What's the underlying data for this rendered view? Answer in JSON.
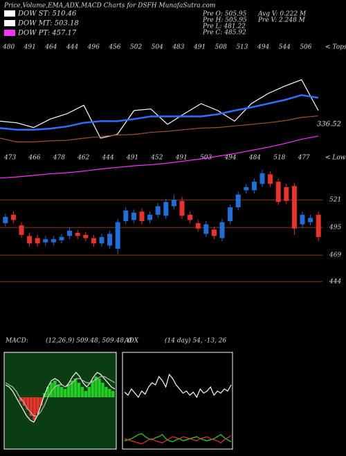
{
  "header": {
    "title": "Price,Volume,EMA,ADX,MACD Charts for DSFH MunafaSutra.com",
    "legend": [
      {
        "label": "DOW ST: 510.46",
        "color": "#ffffff"
      },
      {
        "label": "DOW MT: 503.18",
        "color": "#ffffff"
      },
      {
        "label": "DOW PT: 457.17",
        "color": "#ff33ff"
      }
    ],
    "info": [
      "Pre O: 505.95",
      "Pre H: 505.95",
      "Pre L: 481.22",
      "Pre C: 485.92",
      "Avg V: 0.222 M",
      "Pre V: 2.248 M"
    ]
  },
  "chart_data": [
    {
      "type": "line",
      "ylim": [
        300,
        560
      ],
      "tops": [
        480,
        491,
        464,
        444,
        496,
        456,
        502,
        504,
        483,
        491,
        508,
        513,
        494,
        544,
        506
      ],
      "tops_label": "< Tops",
      "lows": [
        473,
        466,
        478,
        462,
        444,
        491,
        452,
        491,
        503,
        494,
        484,
        518,
        477
      ],
      "lows_label": "< Lows",
      "annotation": "336.52",
      "series": [
        {
          "color": "#ffffff",
          "values": [
            410,
            407,
            398,
            414,
            424,
            440,
            378,
            385,
            430,
            433,
            404,
            424,
            443,
            430,
            410,
            443,
            462,
            476,
            488,
            430
          ]
        },
        {
          "color": "#2f6fff",
          "values": [
            397,
            394,
            394,
            396,
            400,
            407,
            410,
            410,
            414,
            419,
            419,
            419,
            419,
            423,
            430,
            436,
            443,
            450,
            459,
            454
          ]
        },
        {
          "color": "#a0522d",
          "values": [
            378,
            371,
            371,
            373,
            374,
            378,
            381,
            384,
            385,
            389,
            391,
            394,
            397,
            398,
            401,
            404,
            407,
            411,
            417,
            420
          ]
        },
        {
          "color": "#ff33ff",
          "values": [
            303,
            305,
            308,
            311,
            313,
            316,
            320,
            323,
            326,
            328,
            331,
            335,
            339,
            344,
            349,
            355,
            361,
            368,
            376,
            382
          ]
        }
      ]
    },
    {
      "type": "candlestick",
      "ylim": [
        436,
        553
      ],
      "yticks": [
        444,
        469,
        495,
        521
      ],
      "up_color": "#1e6fd9",
      "down_color": "#e8322a",
      "grid_color": "#8b3a1a",
      "open": [
        499,
        507,
        497,
        487,
        485,
        481,
        481,
        483,
        487,
        490,
        488,
        485,
        480,
        478,
        475,
        501,
        502,
        510,
        502,
        507,
        506,
        515,
        520,
        507,
        499,
        489,
        493,
        485,
        501,
        514,
        530,
        530,
        536,
        545,
        538,
        533,
        534,
        498,
        500,
        507
      ],
      "high": [
        508,
        510,
        500,
        490,
        488,
        487,
        487,
        489,
        495,
        493,
        491,
        488,
        489,
        492,
        503,
        514,
        512,
        513,
        510,
        518,
        522,
        526,
        524,
        510,
        502,
        501,
        496,
        503,
        517,
        529,
        536,
        541,
        549,
        548,
        541,
        536,
        537,
        510,
        507,
        510
      ],
      "low": [
        496,
        499,
        485,
        477,
        477,
        478,
        478,
        480,
        484,
        484,
        482,
        477,
        477,
        475,
        470,
        498,
        499,
        498,
        499,
        504,
        503,
        512,
        503,
        499,
        491,
        486,
        484,
        482,
        498,
        511,
        527,
        527,
        533,
        533,
        516,
        517,
        488,
        495,
        497,
        482
      ],
      "close": [
        505,
        502,
        488,
        480,
        480,
        484,
        484,
        486,
        492,
        487,
        485,
        480,
        486,
        489,
        500,
        511,
        509,
        501,
        507,
        515,
        519,
        521,
        506,
        502,
        494,
        498,
        487,
        500,
        514,
        526,
        533,
        538,
        546,
        536,
        519,
        520,
        494,
        507,
        504,
        486
      ]
    },
    {
      "type": "bar",
      "title": "MACD:",
      "subtitle": "(12,26,9) 509.48, 509.48, 0",
      "ylim": [
        -25,
        25
      ],
      "up_color": "#22cc22",
      "down_color": "#e8322a",
      "values": [
        0,
        0,
        0,
        0,
        -2,
        -4,
        -6,
        -9,
        -11,
        -8,
        -4,
        2,
        5,
        7,
        8,
        6,
        5,
        4,
        6,
        8,
        9,
        7,
        5,
        3,
        5,
        8,
        10,
        9,
        7,
        5,
        4,
        3
      ],
      "series": [
        {
          "color": "#ffffff",
          "values": [
            6,
            5,
            3,
            0,
            -3,
            -6,
            -9,
            -11,
            -12,
            -9,
            -4,
            1,
            5,
            8,
            9,
            8,
            6,
            5,
            7,
            10,
            12,
            10,
            7,
            5,
            7,
            10,
            12,
            11,
            9,
            7,
            5,
            4
          ]
        },
        {
          "color": "#bbbbbb",
          "values": [
            7,
            6,
            5,
            3,
            0,
            -2,
            -5,
            -7,
            -9,
            -9,
            -7,
            -4,
            0,
            3,
            5,
            6,
            6,
            5,
            6,
            7,
            9,
            9,
            8,
            7,
            7,
            8,
            9,
            10,
            10,
            9,
            8,
            7
          ]
        }
      ]
    },
    {
      "type": "line",
      "title": "ADX",
      "subtitle": "(14 day) 54, -13, 26",
      "ylim": [
        0,
        100
      ],
      "series": [
        {
          "color": "#ffffff",
          "values": [
            55,
            52,
            58,
            54,
            50,
            56,
            53,
            60,
            64,
            62,
            70,
            66,
            60,
            72,
            68,
            62,
            58,
            54,
            56,
            52,
            55,
            50,
            58,
            54,
            56,
            60,
            52,
            56,
            54,
            58,
            56,
            62
          ]
        },
        {
          "color": "#22dd22",
          "values": [
            8,
            9,
            10,
            12,
            14,
            15,
            12,
            10,
            9,
            11,
            12,
            14,
            10,
            8,
            7,
            9,
            10,
            8,
            9,
            10,
            11,
            12,
            10,
            9,
            8,
            9,
            10,
            12,
            14,
            11,
            9,
            7
          ]
        },
        {
          "color": "#e8322a",
          "values": [
            10,
            9,
            8,
            7,
            6,
            5,
            7,
            9,
            10,
            8,
            7,
            6,
            8,
            10,
            12,
            11,
            10,
            12,
            11,
            10,
            9,
            8,
            10,
            11,
            12,
            10,
            9,
            8,
            6,
            9,
            11,
            13
          ]
        }
      ]
    }
  ]
}
